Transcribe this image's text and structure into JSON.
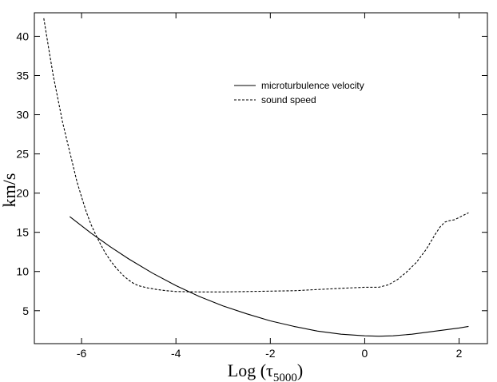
{
  "chart_data": {
    "type": "line",
    "title": "",
    "xlabel": "Log (τ5000)",
    "xlabel_main": "Log (τ",
    "xlabel_sub": "5000",
    "xlabel_close": ")",
    "ylabel": "km/s",
    "xlim": [
      -7.0,
      2.6
    ],
    "ylim": [
      0.8,
      43.0
    ],
    "xticks": [
      -6,
      -4,
      -2,
      0,
      2
    ],
    "yticks": [
      5,
      10,
      15,
      20,
      25,
      30,
      35,
      40
    ],
    "xtick_labels": [
      "-6",
      "-4",
      "-2",
      "0",
      "2"
    ],
    "ytick_labels": [
      "5",
      "10",
      "15",
      "20",
      "25",
      "30",
      "35",
      "40"
    ],
    "grid": false,
    "legend_position": "upper-center-right",
    "series": [
      {
        "name": "microturbulence velocity",
        "style": "solid",
        "color": "#000000",
        "x": [
          -6.25,
          -5.8,
          -5.4,
          -5.0,
          -4.5,
          -4.0,
          -3.5,
          -3.0,
          -2.5,
          -2.0,
          -1.5,
          -1.0,
          -0.5,
          0.0,
          0.3,
          0.6,
          1.0,
          1.5,
          2.0,
          2.2
        ],
        "y": [
          17.0,
          14.9,
          13.2,
          11.6,
          9.8,
          8.2,
          6.8,
          5.6,
          4.6,
          3.7,
          3.0,
          2.4,
          2.0,
          1.8,
          1.75,
          1.8,
          2.0,
          2.4,
          2.8,
          3.0
        ]
      },
      {
        "name": "sound speed",
        "style": "dashed",
        "color": "#000000",
        "x": [
          -6.8,
          -6.7,
          -6.6,
          -6.5,
          -6.4,
          -6.3,
          -6.2,
          -6.1,
          -6.0,
          -5.9,
          -5.8,
          -5.7,
          -5.6,
          -5.5,
          -5.4,
          -5.3,
          -5.2,
          -5.1,
          -5.0,
          -4.9,
          -4.8,
          -4.6,
          -4.4,
          -4.2,
          -4.0,
          -3.5,
          -3.0,
          -2.5,
          -2.0,
          -1.5,
          -1.0,
          -0.5,
          0.0,
          0.3,
          0.5,
          0.7,
          0.9,
          1.1,
          1.3,
          1.5,
          1.6,
          1.7,
          1.8,
          1.9,
          2.0,
          2.1,
          2.2
        ],
        "y": [
          42.3,
          38.6,
          35.0,
          32.0,
          29.0,
          26.5,
          24.0,
          21.5,
          19.5,
          17.6,
          16.0,
          14.7,
          13.5,
          12.4,
          11.5,
          10.7,
          10.0,
          9.4,
          8.9,
          8.5,
          8.2,
          7.9,
          7.7,
          7.55,
          7.45,
          7.4,
          7.4,
          7.45,
          7.5,
          7.55,
          7.7,
          7.85,
          8.0,
          8.0,
          8.3,
          9.0,
          10.0,
          11.2,
          12.8,
          14.8,
          15.7,
          16.3,
          16.5,
          16.6,
          16.9,
          17.2,
          17.5
        ]
      }
    ]
  }
}
